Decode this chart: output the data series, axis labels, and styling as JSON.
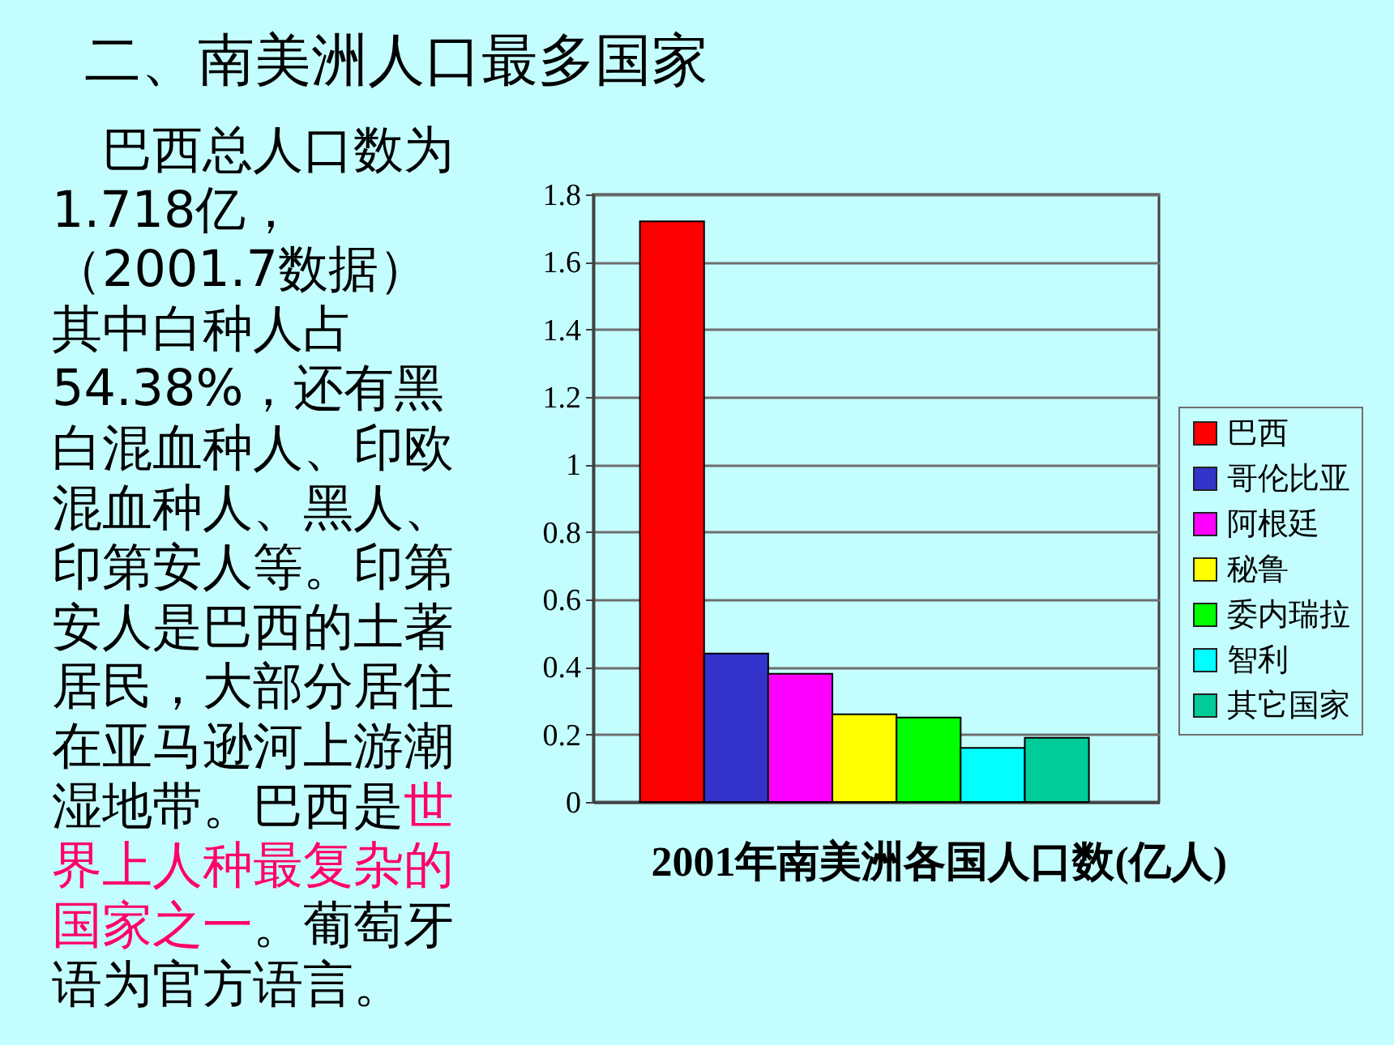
{
  "chart_data": {
    "type": "bar",
    "title": "二、南美洲人口最多国家",
    "xlabel": "2001年南美洲各国人口数(亿人)",
    "annotations": [
      "巴西总人口数为",
      "1.718亿，",
      "（2001.7数据）",
      "其中白种人占",
      "54.38%，还有黑",
      "白混血种人、印欧",
      "混血种人、黑人、",
      "印第安人等。印第",
      "安人是巴西的土著",
      "居民，大部分居住",
      "在亚马逊河上游潮",
      "湿地带。巴西是",
      "世",
      "界上人种最复杂的",
      "国家之一",
      "。葡萄牙",
      "语为官方语言。"
    ],
    "categories": [
      null
    ],
    "series": [
      {
        "name": "巴西",
        "color": "#ff0000",
        "values": [
          1.72
        ]
      },
      {
        "name": "哥伦比亚",
        "color": "#3333cc",
        "values": [
          0.44
        ]
      },
      {
        "name": "阿根廷",
        "color": "#ff00ff",
        "values": [
          0.38
        ]
      },
      {
        "name": "秘鲁",
        "color": "#ffff00",
        "values": [
          0.26
        ]
      },
      {
        "name": "委内瑞拉",
        "color": "#00ff00",
        "values": [
          0.25
        ]
      },
      {
        "name": "智利",
        "color": "#00ffff",
        "values": [
          0.16
        ]
      },
      {
        "name": "其它国家",
        "color": "#00cc99",
        "values": [
          0.19
        ]
      }
    ],
    "ylim": [
      0,
      1.8
    ],
    "yticks": [
      0,
      0.2,
      0.4,
      0.6,
      0.8,
      1,
      1.2,
      1.4,
      1.6,
      1.8
    ],
    "grid": "y",
    "legend": "right",
    "tick_labels": "y"
  }
}
